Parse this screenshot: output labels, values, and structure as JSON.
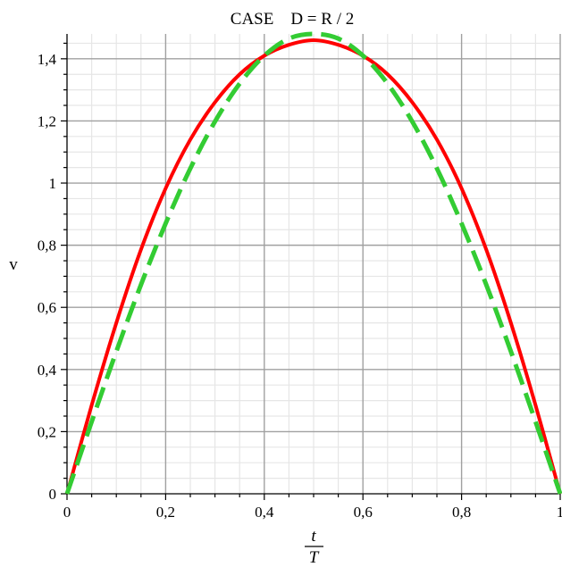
{
  "chart_data": {
    "type": "line",
    "title": "CASE    D = R / 2",
    "xlabel": {
      "numerator": "t",
      "denominator": "T"
    },
    "ylabel": "v",
    "xlim": [
      0,
      1
    ],
    "ylim": [
      0,
      1.48
    ],
    "grid": true,
    "minor_grid": true,
    "x_ticks": [
      0,
      0.2,
      0.4,
      0.6,
      0.8,
      1
    ],
    "x_tick_labels": [
      "0",
      "0,2",
      "0,4",
      "0,6",
      "0,8",
      "1"
    ],
    "y_ticks": [
      0,
      0.2,
      0.4,
      0.6,
      0.8,
      1,
      1.2,
      1.4
    ],
    "y_tick_labels": [
      "0",
      "0,2",
      "0,4",
      "0,6",
      "0,8",
      "1",
      "1,2",
      "1,4"
    ],
    "series": [
      {
        "style": "solid",
        "color": "#ff0000",
        "x": [
          0,
          0.05,
          0.1,
          0.15,
          0.2,
          0.25,
          0.3,
          0.35,
          0.4,
          0.45,
          0.5,
          0.55,
          0.6,
          0.65,
          0.7,
          0.75,
          0.8,
          0.85,
          0.9,
          0.95,
          1
        ],
        "y": [
          0,
          0.285,
          0.55,
          0.786,
          0.983,
          1.14,
          1.26,
          1.35,
          1.41,
          1.445,
          1.46,
          1.445,
          1.41,
          1.35,
          1.26,
          1.14,
          0.983,
          0.786,
          0.55,
          0.285,
          0
        ]
      },
      {
        "style": "dashed",
        "color": "#33cc33",
        "x": [
          0,
          0.05,
          0.1,
          0.15,
          0.2,
          0.25,
          0.3,
          0.35,
          0.4,
          0.45,
          0.5,
          0.55,
          0.6,
          0.65,
          0.7,
          0.75,
          0.8,
          0.85,
          0.9,
          0.95,
          1
        ],
        "y": [
          0,
          0.232,
          0.458,
          0.673,
          0.87,
          1.047,
          1.198,
          1.32,
          1.41,
          1.465,
          1.48,
          1.465,
          1.41,
          1.32,
          1.198,
          1.047,
          0.87,
          0.673,
          0.458,
          0.232,
          0
        ]
      }
    ]
  }
}
